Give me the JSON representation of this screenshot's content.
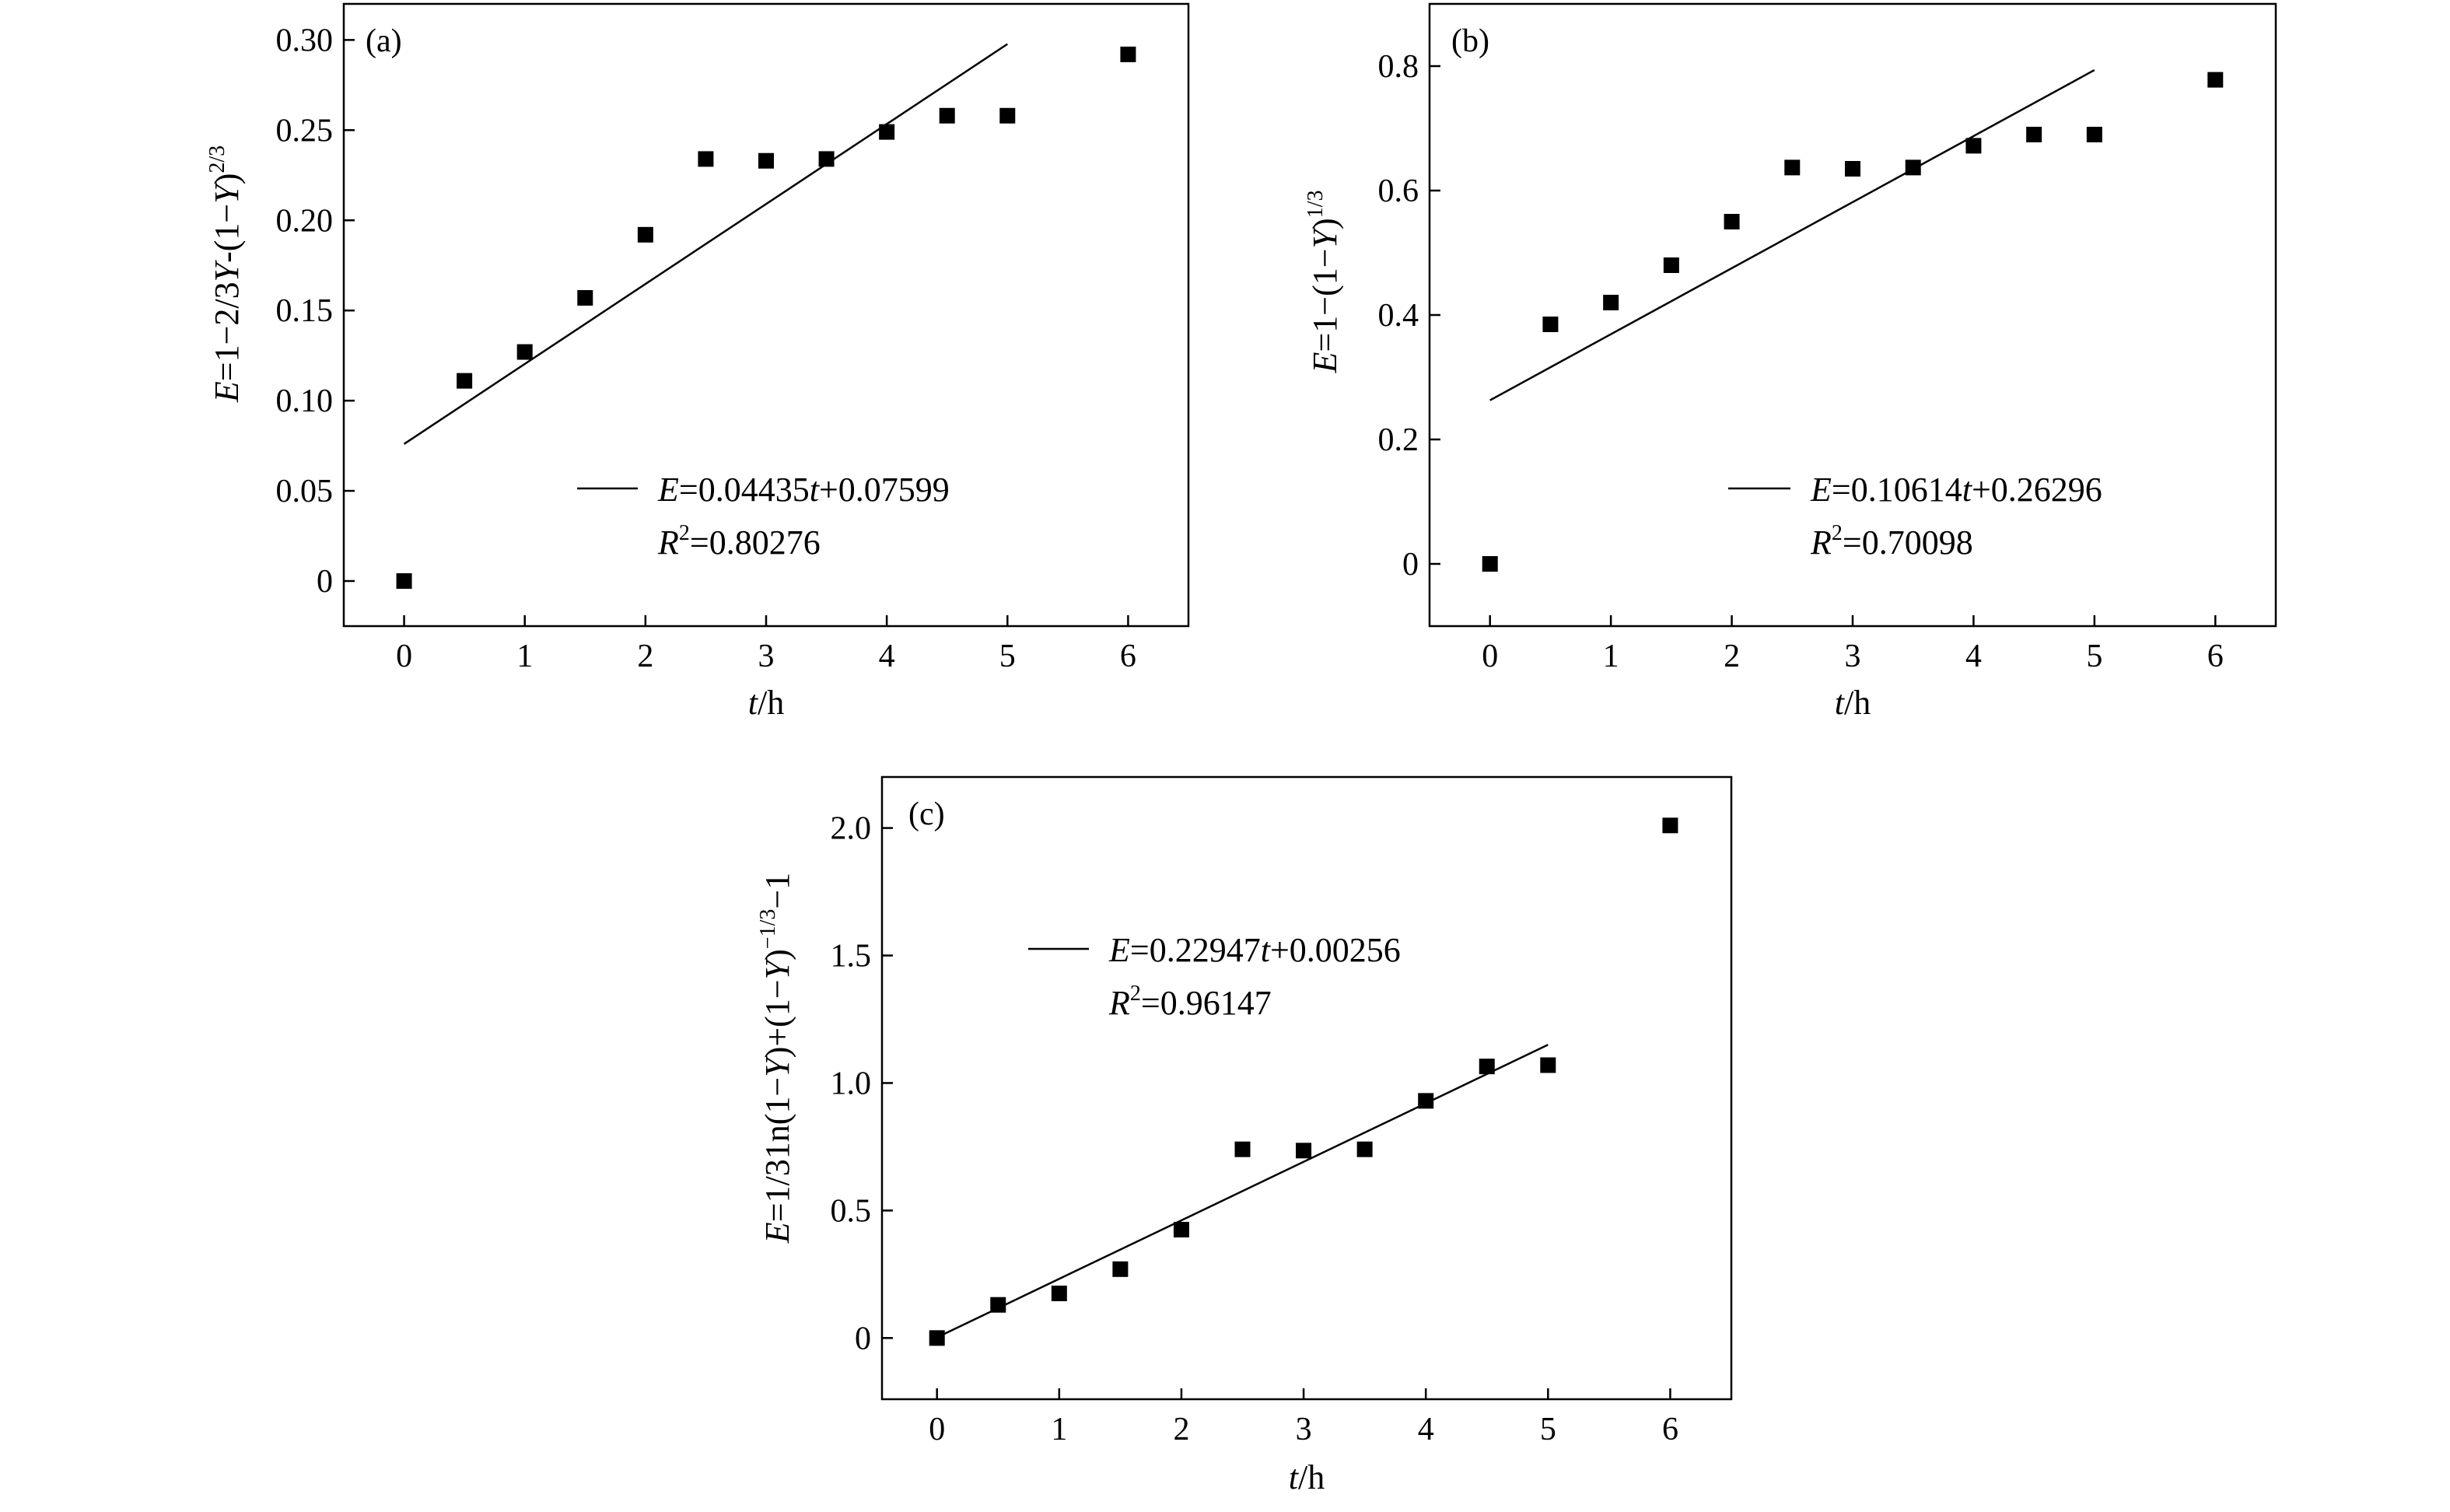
{
  "chart_data": [
    {
      "type": "scatter",
      "panel": "(a)",
      "xlabel_italic": "t",
      "xlabel_rest": "/h",
      "ylabel": "E=1−2/3Y-(1−Y)^(2/3)",
      "ylabel_parts": {
        "e": "E",
        "mid": "=1−2/3",
        "y1": "Y",
        "mid2": "-(1−",
        "y2": "Y",
        "close": ")",
        "sup": "2/3"
      },
      "xlim": [
        -0.5,
        6.5
      ],
      "ylim": [
        -0.025,
        0.32
      ],
      "xticks": [
        0,
        1,
        2,
        3,
        4,
        5,
        6
      ],
      "xtick_labels": [
        "0",
        "1",
        "2",
        "3",
        "4",
        "5",
        "6"
      ],
      "yticks": [
        0,
        0.05,
        0.1,
        0.15,
        0.2,
        0.25,
        0.3
      ],
      "ytick_labels": [
        "0",
        "0.05",
        "0.10",
        "0.15",
        "0.20",
        "0.25",
        "0.30"
      ],
      "series": [
        {
          "name": "data",
          "x": [
            0,
            0.5,
            1,
            1.5,
            2,
            2.5,
            3,
            3.5,
            4,
            4.5,
            5,
            6
          ],
          "y": [
            0,
            0.111,
            0.127,
            0.157,
            0.192,
            0.234,
            0.233,
            0.234,
            0.249,
            0.258,
            0.258,
            0.292
          ]
        }
      ],
      "fit": {
        "slope": 0.04435,
        "intercept": 0.07599,
        "x_range": [
          0,
          5
        ]
      },
      "legend": {
        "eq_e": "E",
        "eq_mid": "=0.04435",
        "eq_t": "t",
        "eq_end": "+0.07599",
        "r2_r": "R",
        "r2_sup": "2",
        "r2_val": "=0.80276"
      }
    },
    {
      "type": "scatter",
      "panel": "(b)",
      "xlabel_italic": "t",
      "xlabel_rest": "/h",
      "ylabel": "E=1−(1−Y)^(1/3)",
      "ylabel_parts": {
        "e": "E",
        "mid": "=1−(1−",
        "y1": "Y",
        "close": ")",
        "sup": "1/3"
      },
      "xlim": [
        -0.5,
        6.5
      ],
      "ylim": [
        -0.1,
        0.9
      ],
      "xticks": [
        0,
        1,
        2,
        3,
        4,
        5,
        6
      ],
      "xtick_labels": [
        "0",
        "1",
        "2",
        "3",
        "4",
        "5",
        "6"
      ],
      "yticks": [
        0,
        0.2,
        0.4,
        0.6,
        0.8
      ],
      "ytick_labels": [
        "0",
        "0.2",
        "0.4",
        "0.6",
        "0.8"
      ],
      "series": [
        {
          "name": "data",
          "x": [
            0,
            0.5,
            1,
            1.5,
            2,
            2.5,
            3,
            3.5,
            4,
            4.5,
            5,
            6
          ],
          "y": [
            0,
            0.385,
            0.42,
            0.48,
            0.55,
            0.637,
            0.635,
            0.637,
            0.672,
            0.69,
            0.69,
            0.778
          ]
        }
      ],
      "fit": {
        "slope": 0.10614,
        "intercept": 0.26296,
        "x_range": [
          0,
          5
        ]
      },
      "legend": {
        "eq_e": "E",
        "eq_mid": "=0.10614",
        "eq_t": "t",
        "eq_end": "+0.26296",
        "r2_r": "R",
        "r2_sup": "2",
        "r2_val": "=0.70098"
      }
    },
    {
      "type": "scatter",
      "panel": "(c)",
      "xlabel_italic": "t",
      "xlabel_rest": "/h",
      "ylabel": "E=1/31n(1−Y)+(1−Y)^(−1/3)−1",
      "ylabel_parts": {
        "e": "E",
        "mid": "=1/31n(1−",
        "y1": "Y",
        "mid2": ")+(1−",
        "y2": "Y",
        "close": ")",
        "sup": "−1/3",
        "tail": "−1"
      },
      "xlim": [
        -0.45,
        6.5
      ],
      "ylim": [
        -0.24,
        2.2
      ],
      "xticks": [
        0,
        1,
        2,
        3,
        4,
        5,
        6
      ],
      "xtick_labels": [
        "0",
        "1",
        "2",
        "3",
        "4",
        "5",
        "6"
      ],
      "yticks": [
        0,
        0.5,
        1.0,
        1.5,
        2.0
      ],
      "ytick_labels": [
        "0",
        "0.5",
        "1.0",
        "1.5",
        "2.0"
      ],
      "series": [
        {
          "name": "data",
          "x": [
            0,
            0.5,
            1,
            1.5,
            2,
            2.5,
            3,
            3.5,
            4,
            4.5,
            5,
            6
          ],
          "y": [
            0,
            0.13,
            0.175,
            0.27,
            0.425,
            0.74,
            0.735,
            0.74,
            0.93,
            1.065,
            1.07,
            2.01
          ]
        }
      ],
      "fit": {
        "slope": 0.22947,
        "intercept": 0.00256,
        "x_range": [
          0,
          5
        ]
      },
      "legend": {
        "eq_e": "E",
        "eq_mid": "=0.22947",
        "eq_t": "t",
        "eq_end": "+0.00256",
        "r2_r": "R",
        "r2_sup": "2",
        "r2_val": "=0.96147"
      }
    }
  ]
}
